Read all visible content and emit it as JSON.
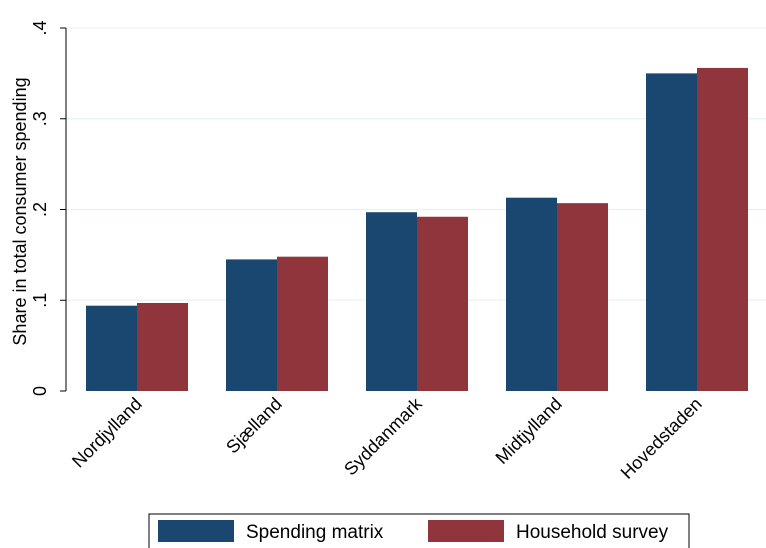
{
  "chart_data": {
    "type": "bar",
    "categories": [
      "Nordjylland",
      "Sjælland",
      "Syddanmark",
      "Midtjylland",
      "Hovedstaden"
    ],
    "series": [
      {
        "name": "Spending matrix",
        "values": [
          0.094,
          0.145,
          0.197,
          0.213,
          0.35
        ],
        "color": "#1a476f"
      },
      {
        "name": "Household survey",
        "values": [
          0.097,
          0.148,
          0.192,
          0.207,
          0.356
        ],
        "color": "#90353b"
      }
    ],
    "title": "",
    "xlabel": "",
    "ylabel": "Share in total consumer spending",
    "ylim": [
      0,
      0.4
    ],
    "yticks": [
      0,
      0.1,
      0.2,
      0.3,
      0.4
    ],
    "ytick_labels": [
      "0",
      ".1",
      ".2",
      ".3",
      ".4"
    ],
    "grid": true,
    "legend_position": "bottom"
  }
}
